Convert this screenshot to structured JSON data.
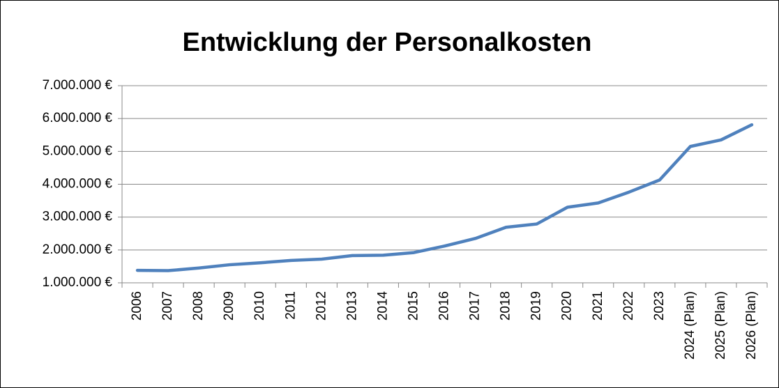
{
  "chart_data": {
    "type": "line",
    "title": "Entwicklung der Personalkosten",
    "categories": [
      "2006",
      "2007",
      "2008",
      "2009",
      "2010",
      "2011",
      "2012",
      "2013",
      "2014",
      "2015",
      "2016",
      "2017",
      "2018",
      "2019",
      "2020",
      "2021",
      "2022",
      "2023",
      "2024 (Plan)",
      "2025 (Plan)",
      "2026 (Plan)"
    ],
    "series": [
      {
        "name": "Personalkosten",
        "color": "#4f81bd",
        "values": [
          1380000,
          1370000,
          1450000,
          1550000,
          1610000,
          1680000,
          1720000,
          1830000,
          1840000,
          1920000,
          2120000,
          2350000,
          2690000,
          2790000,
          3300000,
          3430000,
          3760000,
          4130000,
          5150000,
          5350000,
          5810000
        ]
      }
    ],
    "ylim": [
      1000000,
      7000000
    ],
    "yticks": [
      {
        "value": 1000000,
        "label": "1.000.000 €"
      },
      {
        "value": 2000000,
        "label": "2.000.000 €"
      },
      {
        "value": 3000000,
        "label": "3.000.000 €"
      },
      {
        "value": 4000000,
        "label": "4.000.000 €"
      },
      {
        "value": 5000000,
        "label": "5.000.000 €"
      },
      {
        "value": 6000000,
        "label": "6.000.000 €"
      },
      {
        "value": 7000000,
        "label": "7.000.000 €"
      }
    ],
    "grid": true
  }
}
